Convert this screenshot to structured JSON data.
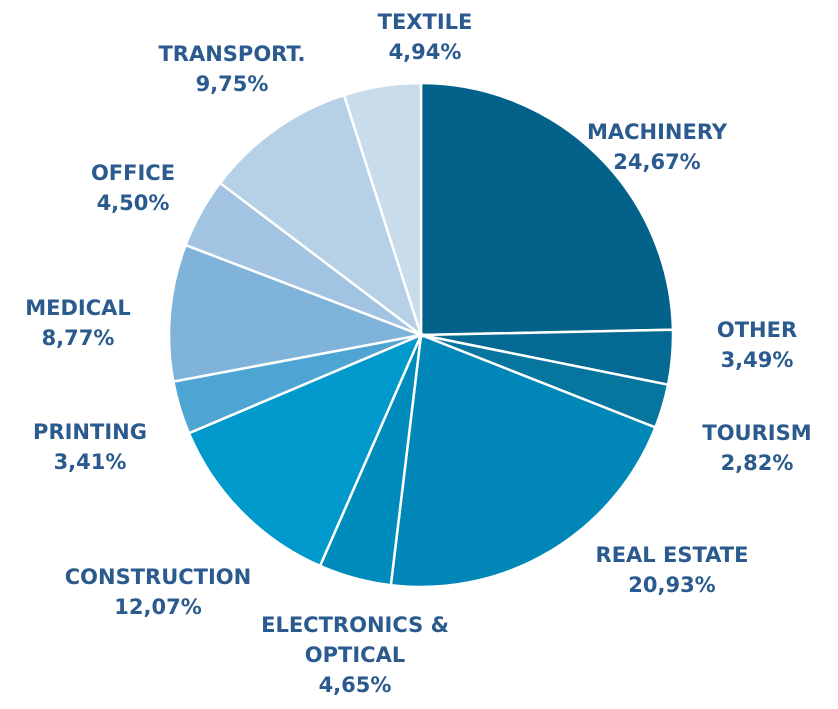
{
  "chart_data": {
    "type": "pie",
    "categories": [
      "MACHINERY",
      "OTHER",
      "TOURISM",
      "REAL ESTATE",
      "ELECTRONICS & OPTICAL",
      "CONSTRUCTION",
      "PRINTING",
      "MEDICAL",
      "OFFICE",
      "TRANSPORT.",
      "TEXTILE"
    ],
    "values": [
      24.67,
      3.49,
      2.82,
      20.93,
      4.65,
      12.07,
      3.41,
      8.77,
      4.5,
      9.75,
      4.94
    ],
    "value_labels": [
      "24,67%",
      "3,49%",
      "2,82%",
      "20,93%",
      "4,65%",
      "12,07%",
      "3,41%",
      "8,77%",
      "4,50%",
      "9,75%",
      "4,94%"
    ],
    "colors": [
      "#03628a",
      "#046a93",
      "#07769f",
      "#0087b7",
      "#008bbd",
      "#0099cb",
      "#4ea5d3",
      "#7fb3d9",
      "#a2c3e1",
      "#b6d0e7",
      "#c9dceb"
    ]
  }
}
